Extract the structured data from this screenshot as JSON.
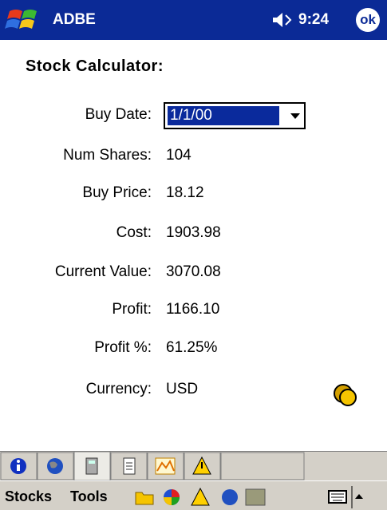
{
  "header": {
    "title": "ADBE",
    "time": "9:24",
    "ok": "ok"
  },
  "heading": "Stock Calculator:",
  "fields": [
    {
      "label": "Buy Date:",
      "value": "1/1/00"
    },
    {
      "label": "Num Shares:",
      "value": "104"
    },
    {
      "label": "Buy Price:",
      "value": "18.12"
    },
    {
      "label": "Cost:",
      "value": "1903.98"
    },
    {
      "label": "Current Value:",
      "value": "3070.08"
    },
    {
      "label": "Profit:",
      "value": "1166.10"
    },
    {
      "label": "Profit %:",
      "value": "61.25%"
    },
    {
      "label": "Currency:",
      "value": "USD"
    }
  ],
  "menu": [
    "Stocks",
    "Tools"
  ]
}
